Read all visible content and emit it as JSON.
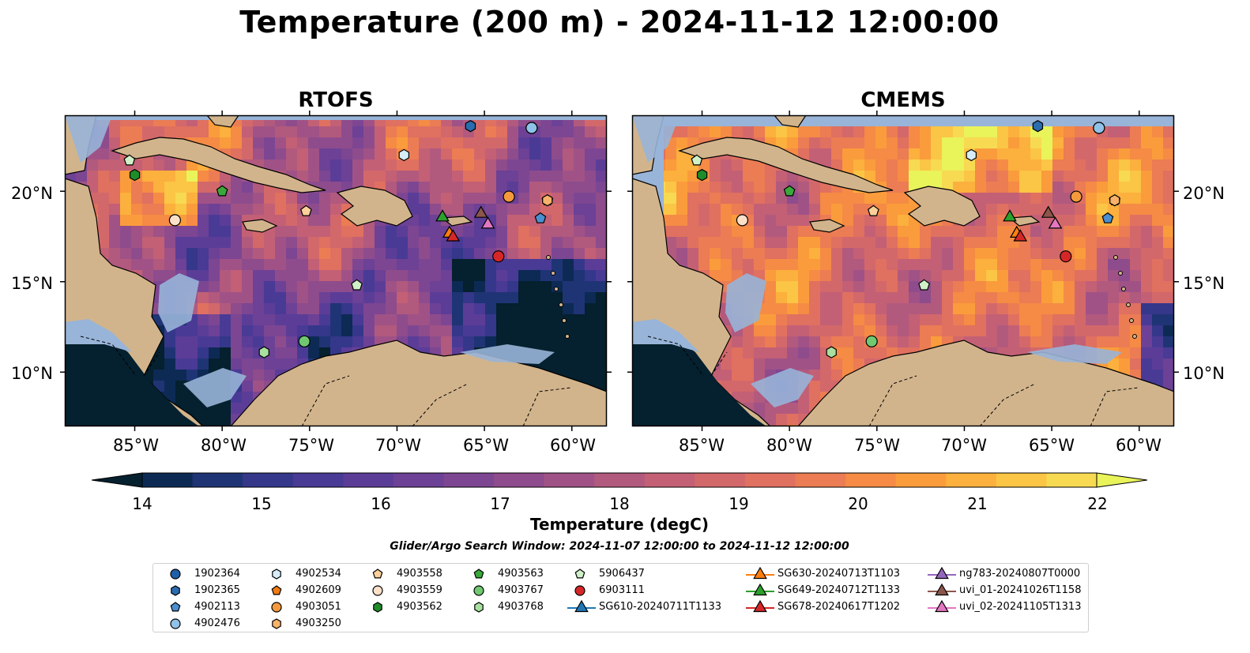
{
  "title": "Temperature (200 m) - 2024-11-12 12:00:00",
  "panels": [
    {
      "title": "RTOFS"
    },
    {
      "title": "CMEMS"
    }
  ],
  "map": {
    "lon_range": [
      -89,
      -58
    ],
    "lat_range": [
      7,
      24.2
    ],
    "lon_ticks": [
      "85°W",
      "80°W",
      "75°W",
      "70°W",
      "65°W",
      "60°W"
    ],
    "lat_ticks": [
      "20°N",
      "15°N",
      "10°N"
    ],
    "colors": {
      "land": "#d2b48c",
      "shelf": "#98b4d8",
      "coast": "#000000"
    }
  },
  "colorbar": {
    "min": 14,
    "max": 22,
    "ticks": [
      "14",
      "15",
      "16",
      "17",
      "18",
      "19",
      "20",
      "21",
      "22"
    ],
    "label": "Temperature (degC)",
    "colors": [
      "#05202e",
      "#0d2a55",
      "#1f3475",
      "#35378a",
      "#493a95",
      "#5b3d98",
      "#6c4196",
      "#7d4692",
      "#8e4c8c",
      "#a05286",
      "#b2597e",
      "#c36075",
      "#d3686b",
      "#e07060",
      "#ec7c53",
      "#f58b45",
      "#fa9c3b",
      "#fcb03d",
      "#fbc545",
      "#f7da52",
      "#e9f35a"
    ]
  },
  "search_window": "Glider/Argo Search Window: 2024-11-07 12:00:00 to 2024-11-12 12:00:00",
  "legend": [
    {
      "label": "1902364",
      "marker": "circle",
      "color": "#1f5fa8"
    },
    {
      "label": "1902365",
      "marker": "hexagon",
      "color": "#2a6cb0"
    },
    {
      "label": "4902113",
      "marker": "pentagon",
      "color": "#4a8fd0"
    },
    {
      "label": "4902476",
      "marker": "circle",
      "color": "#8fc2e8"
    },
    {
      "label": "4902534",
      "marker": "hexagon",
      "color": "#d6ecfa"
    },
    {
      "label": "4902609",
      "marker": "pentagon",
      "color": "#f07b10"
    },
    {
      "label": "4903051",
      "marker": "circle",
      "color": "#f59a3c"
    },
    {
      "label": "4903250",
      "marker": "hexagon",
      "color": "#f8b26a"
    },
    {
      "label": "4903558",
      "marker": "pentagon",
      "color": "#fbd09a"
    },
    {
      "label": "4903559",
      "marker": "circle",
      "color": "#fde0c8"
    },
    {
      "label": "4903562",
      "marker": "hexagon",
      "color": "#1e8c28"
    },
    {
      "label": "4903563",
      "marker": "pentagon",
      "color": "#3aa83a"
    },
    {
      "label": "4903767",
      "marker": "circle",
      "color": "#70c870"
    },
    {
      "label": "4903768",
      "marker": "hexagon",
      "color": "#a8e0a0"
    },
    {
      "label": "5906437",
      "marker": "pentagon",
      "color": "#d0f0c8"
    },
    {
      "label": "6903111",
      "marker": "circle",
      "color": "#d62728"
    },
    {
      "label": "SG610-20240711T1133",
      "marker": "triangle",
      "color": "#1f77b4"
    },
    {
      "label": "SG630-20240713T1103",
      "marker": "triangle",
      "color": "#ff7f0e"
    },
    {
      "label": "SG649-20240712T1133",
      "marker": "triangle",
      "color": "#2ca02c"
    },
    {
      "label": "SG678-20240617T1202",
      "marker": "triangle",
      "color": "#d62728"
    },
    {
      "label": "ng783-20240807T0000",
      "marker": "triangle",
      "color": "#9467bd"
    },
    {
      "label": "uvi_01-20241026T1158",
      "marker": "triangle",
      "color": "#8c564b"
    },
    {
      "label": "uvi_02-20241105T1313",
      "marker": "triangle",
      "color": "#e377c2"
    }
  ],
  "observations": [
    {
      "id": "1902364",
      "lon": -62.3,
      "lat": 23.5
    },
    {
      "id": "1902365",
      "lon": -65.8,
      "lat": 23.6
    },
    {
      "id": "4902113",
      "lon": -61.8,
      "lat": 18.5
    },
    {
      "id": "4902476",
      "lon": -62.3,
      "lat": 23.5
    },
    {
      "id": "4902534",
      "lon": -69.6,
      "lat": 22.0
    },
    {
      "id": "4902609",
      "lon": -61.4,
      "lat": 19.5
    },
    {
      "id": "4903051",
      "lon": -63.6,
      "lat": 19.7
    },
    {
      "id": "4903250",
      "lon": -61.4,
      "lat": 19.5
    },
    {
      "id": "4903558",
      "lon": -75.2,
      "lat": 18.9
    },
    {
      "id": "4903559",
      "lon": -82.7,
      "lat": 18.4
    },
    {
      "id": "4903562",
      "lon": -85.0,
      "lat": 20.9
    },
    {
      "id": "4903563",
      "lon": -80.0,
      "lat": 20.0
    },
    {
      "id": "4903767",
      "lon": -75.3,
      "lat": 11.7
    },
    {
      "id": "4903768",
      "lon": -77.6,
      "lat": 11.1
    },
    {
      "id": "5906437",
      "lon": -72.3,
      "lat": 14.8
    },
    {
      "id": "6903111",
      "lon": -64.2,
      "lat": 16.4
    },
    {
      "id": "5906437",
      "lon": -85.3,
      "lat": 21.7
    },
    {
      "id": "SG649-20240712T1133",
      "lon": -67.4,
      "lat": 18.6
    },
    {
      "id": "SG630-20240713T1103",
      "lon": -67.0,
      "lat": 17.7
    },
    {
      "id": "SG678-20240617T1202",
      "lon": -66.8,
      "lat": 17.5
    },
    {
      "id": "uvi_01-20241026T1158",
      "lon": -65.2,
      "lat": 18.8
    },
    {
      "id": "uvi_02-20241105T1313",
      "lon": -64.8,
      "lat": 18.2
    }
  ]
}
